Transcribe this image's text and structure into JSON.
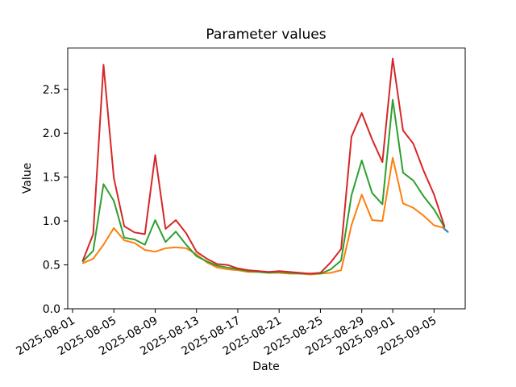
{
  "chart_data": {
    "type": "line",
    "title": "Parameter values",
    "xlabel": "Date",
    "ylabel": "Value",
    "grid": false,
    "legend": false,
    "background": "#ffffff",
    "spine_color": "#000000",
    "ylim": [
      0,
      2.97
    ],
    "y_ticks": [
      "0.0",
      "0.5",
      "1.0",
      "1.5",
      "2.0",
      "2.5"
    ],
    "x_ticks": [
      {
        "label": "2025-08-01",
        "day": 0
      },
      {
        "label": "2025-08-05",
        "day": 4
      },
      {
        "label": "2025-08-09",
        "day": 8
      },
      {
        "label": "2025-08-13",
        "day": 12
      },
      {
        "label": "2025-08-17",
        "day": 16
      },
      {
        "label": "2025-08-21",
        "day": 20
      },
      {
        "label": "2025-08-25",
        "day": 24
      },
      {
        "label": "2025-08-29",
        "day": 28
      },
      {
        "label": "2025-09-01",
        "day": 31
      },
      {
        "label": "2025-09-05",
        "day": 35
      }
    ],
    "start_date": "2025-08-01",
    "x_days": [
      1,
      2,
      3,
      4,
      5,
      6,
      7,
      8,
      9,
      10,
      11,
      12,
      13,
      14,
      15,
      16,
      17,
      18,
      19,
      20,
      21,
      22,
      23,
      24,
      25,
      26,
      27,
      28,
      29,
      30,
      31,
      32,
      33,
      34,
      35,
      36
    ],
    "first_data_date": "2025-08-02",
    "last_data_date": "2025-09-06",
    "series": [
      {
        "name": "series-blue",
        "color": "#1f77b4",
        "x_days": [
          35.8,
          36.35
        ],
        "values": [
          0.93,
          0.875
        ]
      },
      {
        "name": "series-orange",
        "color": "#ff7f0e",
        "values": [
          0.52,
          0.57,
          0.73,
          0.92,
          0.78,
          0.75,
          0.67,
          0.65,
          0.69,
          0.7,
          0.69,
          0.62,
          0.53,
          0.47,
          0.45,
          0.44,
          0.42,
          0.42,
          0.41,
          0.41,
          0.4,
          0.4,
          0.39,
          0.4,
          0.41,
          0.44,
          0.95,
          1.3,
          1.01,
          1.0,
          1.72,
          1.2,
          1.15,
          1.06,
          0.95,
          0.92
        ]
      },
      {
        "name": "series-green",
        "color": "#2ca02c",
        "values": [
          0.54,
          0.66,
          1.42,
          1.23,
          0.81,
          0.79,
          0.73,
          1.01,
          0.76,
          0.88,
          0.73,
          0.6,
          0.54,
          0.49,
          0.47,
          0.45,
          0.43,
          0.42,
          0.41,
          0.42,
          0.41,
          0.4,
          0.4,
          0.4,
          0.45,
          0.55,
          1.29,
          1.69,
          1.32,
          1.19,
          2.38,
          1.55,
          1.46,
          1.28,
          1.13,
          0.93
        ]
      },
      {
        "name": "series-red",
        "color": "#d62728",
        "values": [
          0.55,
          0.85,
          2.78,
          1.49,
          0.94,
          0.87,
          0.85,
          1.75,
          0.91,
          1.01,
          0.86,
          0.65,
          0.57,
          0.51,
          0.5,
          0.46,
          0.44,
          0.43,
          0.42,
          0.43,
          0.42,
          0.41,
          0.4,
          0.41,
          0.53,
          0.68,
          1.96,
          2.23,
          1.93,
          1.67,
          2.85,
          2.03,
          1.88,
          1.57,
          1.3,
          0.94
        ]
      }
    ]
  }
}
